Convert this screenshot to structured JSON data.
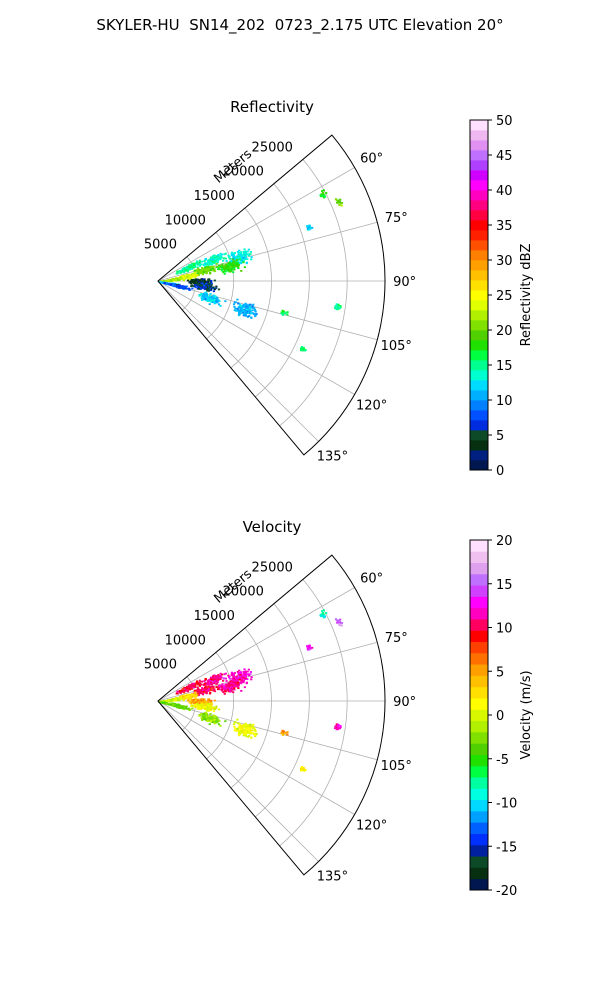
{
  "figure_title": "SKYLER-HU  SN14_202  0723_2.175 UTC Elevation 20°",
  "chart_data": [
    {
      "type": "polar-sector-scatter",
      "title": "Reflectivity",
      "radial_label": "Meters",
      "r_ticks": [
        "5000",
        "10000",
        "15000",
        "20000",
        "25000"
      ],
      "r_range": [
        0,
        30000
      ],
      "theta_ticks": [
        "60°",
        "75°",
        "90°",
        "105°",
        "120°",
        "135°"
      ],
      "theta_range_deg": [
        50,
        140
      ],
      "grid": true,
      "colorbar": {
        "label": "Reflectivity dBZ",
        "range": [
          0,
          50
        ],
        "ticks": [
          "0",
          "5",
          "10",
          "15",
          "20",
          "25",
          "30",
          "35",
          "40",
          "45",
          "50"
        ],
        "colors": [
          "#00174f",
          "#002080",
          "#063010",
          "#0c4a28",
          "#002ce0",
          "#0050ff",
          "#0080ff",
          "#00b0ff",
          "#00dcff",
          "#00ffd0",
          "#00ff90",
          "#00ff40",
          "#20e000",
          "#50d000",
          "#80e000",
          "#b0f000",
          "#e0ff00",
          "#ffff00",
          "#ffe000",
          "#ffc000",
          "#ffa000",
          "#ff8000",
          "#ff5000",
          "#ff2000",
          "#ff0000",
          "#ff0040",
          "#ff0080",
          "#ff00c0",
          "#ff00ff",
          "#d000ff",
          "#b040ff",
          "#c070ff",
          "#e090f0",
          "#f0b8f0",
          "#ffe0ff"
        ]
      },
      "clusters": [
        {
          "az": 65,
          "r": 4300,
          "value": 15
        },
        {
          "az": 68,
          "r": 7800,
          "value": 14
        },
        {
          "az": 73,
          "r": 11000,
          "value": 13
        },
        {
          "az": 76,
          "r": 6200,
          "value": 20
        },
        {
          "az": 78,
          "r": 9600,
          "value": 18
        },
        {
          "az": 80,
          "r": 3300,
          "value": 24
        },
        {
          "az": 83,
          "r": 1500,
          "value": 22
        },
        {
          "az": 90,
          "r": 5500,
          "value": 4
        },
        {
          "az": 96,
          "r": 6000,
          "value": 6
        },
        {
          "az": 100,
          "r": 1200,
          "value": 12
        },
        {
          "az": 103,
          "r": 2600,
          "value": 8
        },
        {
          "az": 108,
          "r": 7000,
          "value": 12
        },
        {
          "az": 108,
          "r": 12000,
          "value": 11
        },
        {
          "az": 104,
          "r": 17000,
          "value": 16
        },
        {
          "az": 98,
          "r": 24000,
          "value": 15
        },
        {
          "az": 115,
          "r": 21000,
          "value": 16
        },
        {
          "az": 62,
          "r": 24500,
          "value": 18
        },
        {
          "az": 70,
          "r": 21000,
          "value": 12
        },
        {
          "az": 66,
          "r": 26000,
          "value": 20
        }
      ]
    },
    {
      "type": "polar-sector-scatter",
      "title": "Velocity",
      "radial_label": "Meters",
      "r_ticks": [
        "5000",
        "10000",
        "15000",
        "20000",
        "25000"
      ],
      "r_range": [
        0,
        30000
      ],
      "theta_ticks": [
        "60°",
        "75°",
        "90°",
        "105°",
        "120°",
        "135°"
      ],
      "theta_range_deg": [
        50,
        140
      ],
      "grid": true,
      "colorbar": {
        "label": "Velocity (m/s)",
        "range": [
          -20,
          20
        ],
        "ticks": [
          "-20",
          "-15",
          "-10",
          "-5",
          "0",
          "5",
          "10",
          "15",
          "20"
        ],
        "colors": [
          "#00174f",
          "#063010",
          "#0c4a28",
          "#0020a0",
          "#0030ff",
          "#0060ff",
          "#00a0ff",
          "#00d8ff",
          "#00ffe0",
          "#00ffa0",
          "#00ff40",
          "#20e000",
          "#50d000",
          "#80e000",
          "#b0f000",
          "#d8f800",
          "#ffff00",
          "#ffe000",
          "#ffc000",
          "#ffa000",
          "#ff7000",
          "#ff4000",
          "#ff0000",
          "#ff0060",
          "#ff00c0",
          "#ff00ff",
          "#d040ff",
          "#c070ff",
          "#e0a0f0",
          "#f0c0f0",
          "#ffe0ff"
        ]
      },
      "clusters": [
        {
          "az": 65,
          "r": 4300,
          "value": 10
        },
        {
          "az": 68,
          "r": 7800,
          "value": 11
        },
        {
          "az": 73,
          "r": 11000,
          "value": 12
        },
        {
          "az": 76,
          "r": 6200,
          "value": 10
        },
        {
          "az": 78,
          "r": 9600,
          "value": 11
        },
        {
          "az": 80,
          "r": 3300,
          "value": 3
        },
        {
          "az": 83,
          "r": 1500,
          "value": 0
        },
        {
          "az": 90,
          "r": 5500,
          "value": 5
        },
        {
          "az": 96,
          "r": 6000,
          "value": 1
        },
        {
          "az": 100,
          "r": 1200,
          "value": -3
        },
        {
          "az": 103,
          "r": 2600,
          "value": -3
        },
        {
          "az": 108,
          "r": 7000,
          "value": -2
        },
        {
          "az": 108,
          "r": 12000,
          "value": 1
        },
        {
          "az": 104,
          "r": 17000,
          "value": 5
        },
        {
          "az": 98,
          "r": 24000,
          "value": 12
        },
        {
          "az": 115,
          "r": 21000,
          "value": 2
        },
        {
          "az": 62,
          "r": 24500,
          "value": -8
        },
        {
          "az": 70,
          "r": 21000,
          "value": 13
        },
        {
          "az": 66,
          "r": 26000,
          "value": 15
        }
      ]
    }
  ]
}
